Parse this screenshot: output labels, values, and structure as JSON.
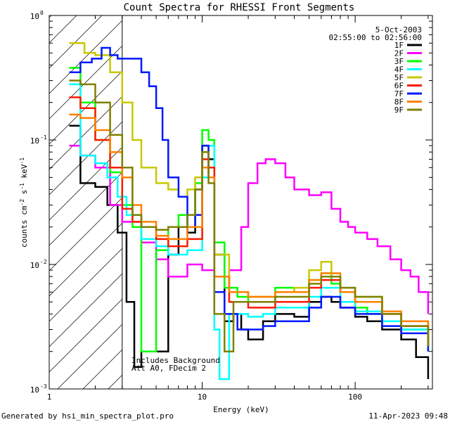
{
  "chart_data": {
    "type": "line",
    "title": "Count Spectra for RHESSI Front Segments",
    "xlabel": "Energy (keV)",
    "ylabel_parts": [
      "counts cm",
      "-2",
      " s",
      "-1",
      " keV",
      "-1"
    ],
    "xscale": "log",
    "yscale": "log",
    "xlim": [
      1,
      320
    ],
    "ylim": [
      0.001,
      1
    ],
    "x_ticks": [
      {
        "v": 1,
        "label": "1"
      },
      {
        "v": 10,
        "label": "10"
      },
      {
        "v": 100,
        "label": "100"
      }
    ],
    "y_ticks": [
      {
        "v": 1,
        "label": "10",
        "exp": "0"
      },
      {
        "v": 0.1,
        "label": "10",
        "exp": "-1"
      },
      {
        "v": 0.01,
        "label": "10",
        "exp": "-2"
      },
      {
        "v": 0.001,
        "label": "10",
        "exp": "-3"
      }
    ],
    "hatch_region_xmax": 3,
    "date": "5-Oct-2003",
    "time_range": "02:55:00 to 02:56:00",
    "annotations": [
      "Includes Background",
      "Att A0, FDecim 2"
    ],
    "legend_position": "top-right",
    "series": [
      {
        "name": "1F",
        "color": "#000000",
        "points": [
          [
            1.35,
            0.13
          ],
          [
            1.6,
            0.045
          ],
          [
            2.0,
            0.042
          ],
          [
            2.4,
            0.03
          ],
          [
            2.8,
            0.018
          ],
          [
            3.2,
            0.005
          ],
          [
            3.6,
            0.0015
          ],
          [
            4,
            0.002
          ],
          [
            5,
            0.002
          ],
          [
            6,
            0.012
          ],
          [
            7,
            0.02
          ],
          [
            8,
            0.018
          ],
          [
            9,
            0.04
          ],
          [
            10,
            0.09
          ],
          [
            11,
            0.07
          ],
          [
            12,
            0.012
          ],
          [
            14,
            0.0035
          ],
          [
            16,
            0.004
          ],
          [
            18,
            0.003
          ],
          [
            20,
            0.0025
          ],
          [
            25,
            0.0035
          ],
          [
            30,
            0.004
          ],
          [
            40,
            0.0038
          ],
          [
            50,
            0.005
          ],
          [
            60,
            0.0055
          ],
          [
            70,
            0.005
          ],
          [
            80,
            0.0045
          ],
          [
            100,
            0.0038
          ],
          [
            120,
            0.0035
          ],
          [
            150,
            0.003
          ],
          [
            200,
            0.0025
          ],
          [
            250,
            0.0018
          ],
          [
            300,
            0.0012
          ]
        ]
      },
      {
        "name": "2F",
        "color": "#ff00ff",
        "points": [
          [
            1.35,
            0.09
          ],
          [
            1.6,
            0.075
          ],
          [
            2.0,
            0.06
          ],
          [
            2.5,
            0.03
          ],
          [
            3,
            0.022
          ],
          [
            4,
            0.015
          ],
          [
            5,
            0.011
          ],
          [
            6,
            0.008
          ],
          [
            8,
            0.01
          ],
          [
            10,
            0.009
          ],
          [
            12,
            0.008
          ],
          [
            15,
            0.009
          ],
          [
            18,
            0.02
          ],
          [
            20,
            0.045
          ],
          [
            23,
            0.065
          ],
          [
            26,
            0.07
          ],
          [
            30,
            0.065
          ],
          [
            35,
            0.05
          ],
          [
            40,
            0.04
          ],
          [
            50,
            0.036
          ],
          [
            60,
            0.038
          ],
          [
            70,
            0.028
          ],
          [
            80,
            0.022
          ],
          [
            90,
            0.02
          ],
          [
            100,
            0.018
          ],
          [
            120,
            0.016
          ],
          [
            140,
            0.014
          ],
          [
            170,
            0.011
          ],
          [
            200,
            0.009
          ],
          [
            230,
            0.008
          ],
          [
            260,
            0.006
          ],
          [
            300,
            0.004
          ]
        ]
      },
      {
        "name": "3F",
        "color": "#00ff00",
        "points": [
          [
            1.35,
            0.38
          ],
          [
            1.6,
            0.2
          ],
          [
            2.0,
            0.1
          ],
          [
            2.5,
            0.055
          ],
          [
            3,
            0.03
          ],
          [
            3.5,
            0.02
          ],
          [
            4,
            0.002
          ],
          [
            5,
            0.013
          ],
          [
            6,
            0.02
          ],
          [
            7,
            0.025
          ],
          [
            8,
            0.02
          ],
          [
            9,
            0.045
          ],
          [
            10,
            0.12
          ],
          [
            11,
            0.1
          ],
          [
            12,
            0.015
          ],
          [
            14,
            0.0065
          ],
          [
            17,
            0.0055
          ],
          [
            20,
            0.005
          ],
          [
            25,
            0.005
          ],
          [
            30,
            0.0065
          ],
          [
            40,
            0.006
          ],
          [
            50,
            0.0075
          ],
          [
            60,
            0.0085
          ],
          [
            70,
            0.007
          ],
          [
            80,
            0.006
          ],
          [
            100,
            0.0045
          ],
          [
            120,
            0.004
          ],
          [
            150,
            0.0035
          ],
          [
            200,
            0.003
          ],
          [
            300,
            0.002
          ]
        ]
      },
      {
        "name": "4F",
        "color": "#00ffff",
        "points": [
          [
            1.35,
            0.28
          ],
          [
            1.6,
            0.075
          ],
          [
            2.0,
            0.065
          ],
          [
            2.4,
            0.05
          ],
          [
            2.8,
            0.035
          ],
          [
            3.2,
            0.025
          ],
          [
            4,
            0.016
          ],
          [
            5,
            0.014
          ],
          [
            6,
            0.012
          ],
          [
            8,
            0.013
          ],
          [
            10,
            0.05
          ],
          [
            11,
            0.09
          ],
          [
            12,
            0.003
          ],
          [
            13,
            0.0012
          ],
          [
            15,
            0.004
          ],
          [
            20,
            0.0038
          ],
          [
            25,
            0.004
          ],
          [
            30,
            0.0045
          ],
          [
            40,
            0.0045
          ],
          [
            50,
            0.0055
          ],
          [
            60,
            0.0065
          ],
          [
            80,
            0.005
          ],
          [
            100,
            0.0042
          ],
          [
            150,
            0.0035
          ],
          [
            200,
            0.003
          ],
          [
            300,
            0.0022
          ]
        ]
      },
      {
        "name": "5F",
        "color": "#c8c800",
        "points": [
          [
            1.35,
            0.6
          ],
          [
            1.7,
            0.5
          ],
          [
            2.0,
            0.48
          ],
          [
            2.5,
            0.35
          ],
          [
            3,
            0.2
          ],
          [
            3.5,
            0.1
          ],
          [
            4,
            0.06
          ],
          [
            5,
            0.045
          ],
          [
            6,
            0.04
          ],
          [
            7,
            0.035
          ],
          [
            8,
            0.04
          ],
          [
            9,
            0.05
          ],
          [
            10,
            0.08
          ],
          [
            11,
            0.06
          ],
          [
            12,
            0.012
          ],
          [
            15,
            0.006
          ],
          [
            20,
            0.0055
          ],
          [
            30,
            0.006
          ],
          [
            40,
            0.0065
          ],
          [
            50,
            0.009
          ],
          [
            60,
            0.0105
          ],
          [
            70,
            0.008
          ],
          [
            80,
            0.0065
          ],
          [
            100,
            0.0055
          ],
          [
            150,
            0.004
          ],
          [
            200,
            0.0035
          ],
          [
            300,
            0.0025
          ]
        ]
      },
      {
        "name": "6F",
        "color": "#ff1a00",
        "points": [
          [
            1.35,
            0.22
          ],
          [
            1.6,
            0.18
          ],
          [
            2.0,
            0.1
          ],
          [
            2.5,
            0.06
          ],
          [
            3,
            0.028
          ],
          [
            3.5,
            0.022
          ],
          [
            4,
            0.02
          ],
          [
            5,
            0.016
          ],
          [
            6,
            0.014
          ],
          [
            8,
            0.016
          ],
          [
            10,
            0.07
          ],
          [
            11,
            0.06
          ],
          [
            12,
            0.008
          ],
          [
            15,
            0.005
          ],
          [
            20,
            0.0045
          ],
          [
            30,
            0.005
          ],
          [
            40,
            0.005
          ],
          [
            50,
            0.0065
          ],
          [
            60,
            0.0075
          ],
          [
            80,
            0.006
          ],
          [
            100,
            0.005
          ],
          [
            150,
            0.004
          ],
          [
            200,
            0.0032
          ],
          [
            300,
            0.0022
          ]
        ]
      },
      {
        "name": "7F",
        "color": "#0018ff",
        "points": [
          [
            1.35,
            0.35
          ],
          [
            1.6,
            0.42
          ],
          [
            1.9,
            0.45
          ],
          [
            2.2,
            0.55
          ],
          [
            2.5,
            0.48
          ],
          [
            2.8,
            0.45
          ],
          [
            3.2,
            0.45
          ],
          [
            4,
            0.35
          ],
          [
            4.5,
            0.27
          ],
          [
            5,
            0.18
          ],
          [
            5.5,
            0.1
          ],
          [
            6,
            0.05
          ],
          [
            7,
            0.035
          ],
          [
            8,
            0.02
          ],
          [
            9,
            0.025
          ],
          [
            10,
            0.09
          ],
          [
            11,
            0.05
          ],
          [
            12,
            0.006
          ],
          [
            14,
            0.004
          ],
          [
            17,
            0.003
          ],
          [
            20,
            0.003
          ],
          [
            25,
            0.0032
          ],
          [
            30,
            0.0035
          ],
          [
            40,
            0.0035
          ],
          [
            50,
            0.0045
          ],
          [
            60,
            0.0055
          ],
          [
            80,
            0.0045
          ],
          [
            100,
            0.004
          ],
          [
            150,
            0.0032
          ],
          [
            200,
            0.0028
          ],
          [
            300,
            0.002
          ]
        ]
      },
      {
        "name": "8F",
        "color": "#ff8000",
        "points": [
          [
            1.35,
            0.16
          ],
          [
            1.6,
            0.15
          ],
          [
            2.0,
            0.12
          ],
          [
            2.5,
            0.08
          ],
          [
            3,
            0.05
          ],
          [
            3.5,
            0.03
          ],
          [
            4,
            0.022
          ],
          [
            5,
            0.017
          ],
          [
            6,
            0.016
          ],
          [
            8,
            0.02
          ],
          [
            10,
            0.06
          ],
          [
            11,
            0.05
          ],
          [
            12,
            0.008
          ],
          [
            15,
            0.006
          ],
          [
            20,
            0.0055
          ],
          [
            30,
            0.006
          ],
          [
            40,
            0.006
          ],
          [
            50,
            0.0075
          ],
          [
            60,
            0.0085
          ],
          [
            80,
            0.006
          ],
          [
            100,
            0.005
          ],
          [
            150,
            0.0042
          ],
          [
            200,
            0.0035
          ],
          [
            300,
            0.0024
          ]
        ]
      },
      {
        "name": "9F",
        "color": "#808000",
        "points": [
          [
            1.35,
            0.3
          ],
          [
            1.6,
            0.28
          ],
          [
            2.0,
            0.2
          ],
          [
            2.5,
            0.11
          ],
          [
            3,
            0.06
          ],
          [
            3.5,
            0.025
          ],
          [
            4,
            0.02
          ],
          [
            5,
            0.019
          ],
          [
            6,
            0.02
          ],
          [
            7,
            0.02
          ],
          [
            8,
            0.025
          ],
          [
            9,
            0.04
          ],
          [
            10,
            0.08
          ],
          [
            11,
            0.045
          ],
          [
            12,
            0.004
          ],
          [
            14,
            0.002
          ],
          [
            16,
            0.005
          ],
          [
            20,
            0.005
          ],
          [
            30,
            0.0055
          ],
          [
            40,
            0.0055
          ],
          [
            50,
            0.007
          ],
          [
            60,
            0.008
          ],
          [
            80,
            0.0065
          ],
          [
            100,
            0.0055
          ],
          [
            150,
            0.004
          ],
          [
            200,
            0.0032
          ],
          [
            300,
            0.0022
          ]
        ]
      }
    ]
  },
  "footer": {
    "generated_by": "Generated by hsi_min_spectra_plot.pro",
    "timestamp": "11-Apr-2023 09:48"
  }
}
